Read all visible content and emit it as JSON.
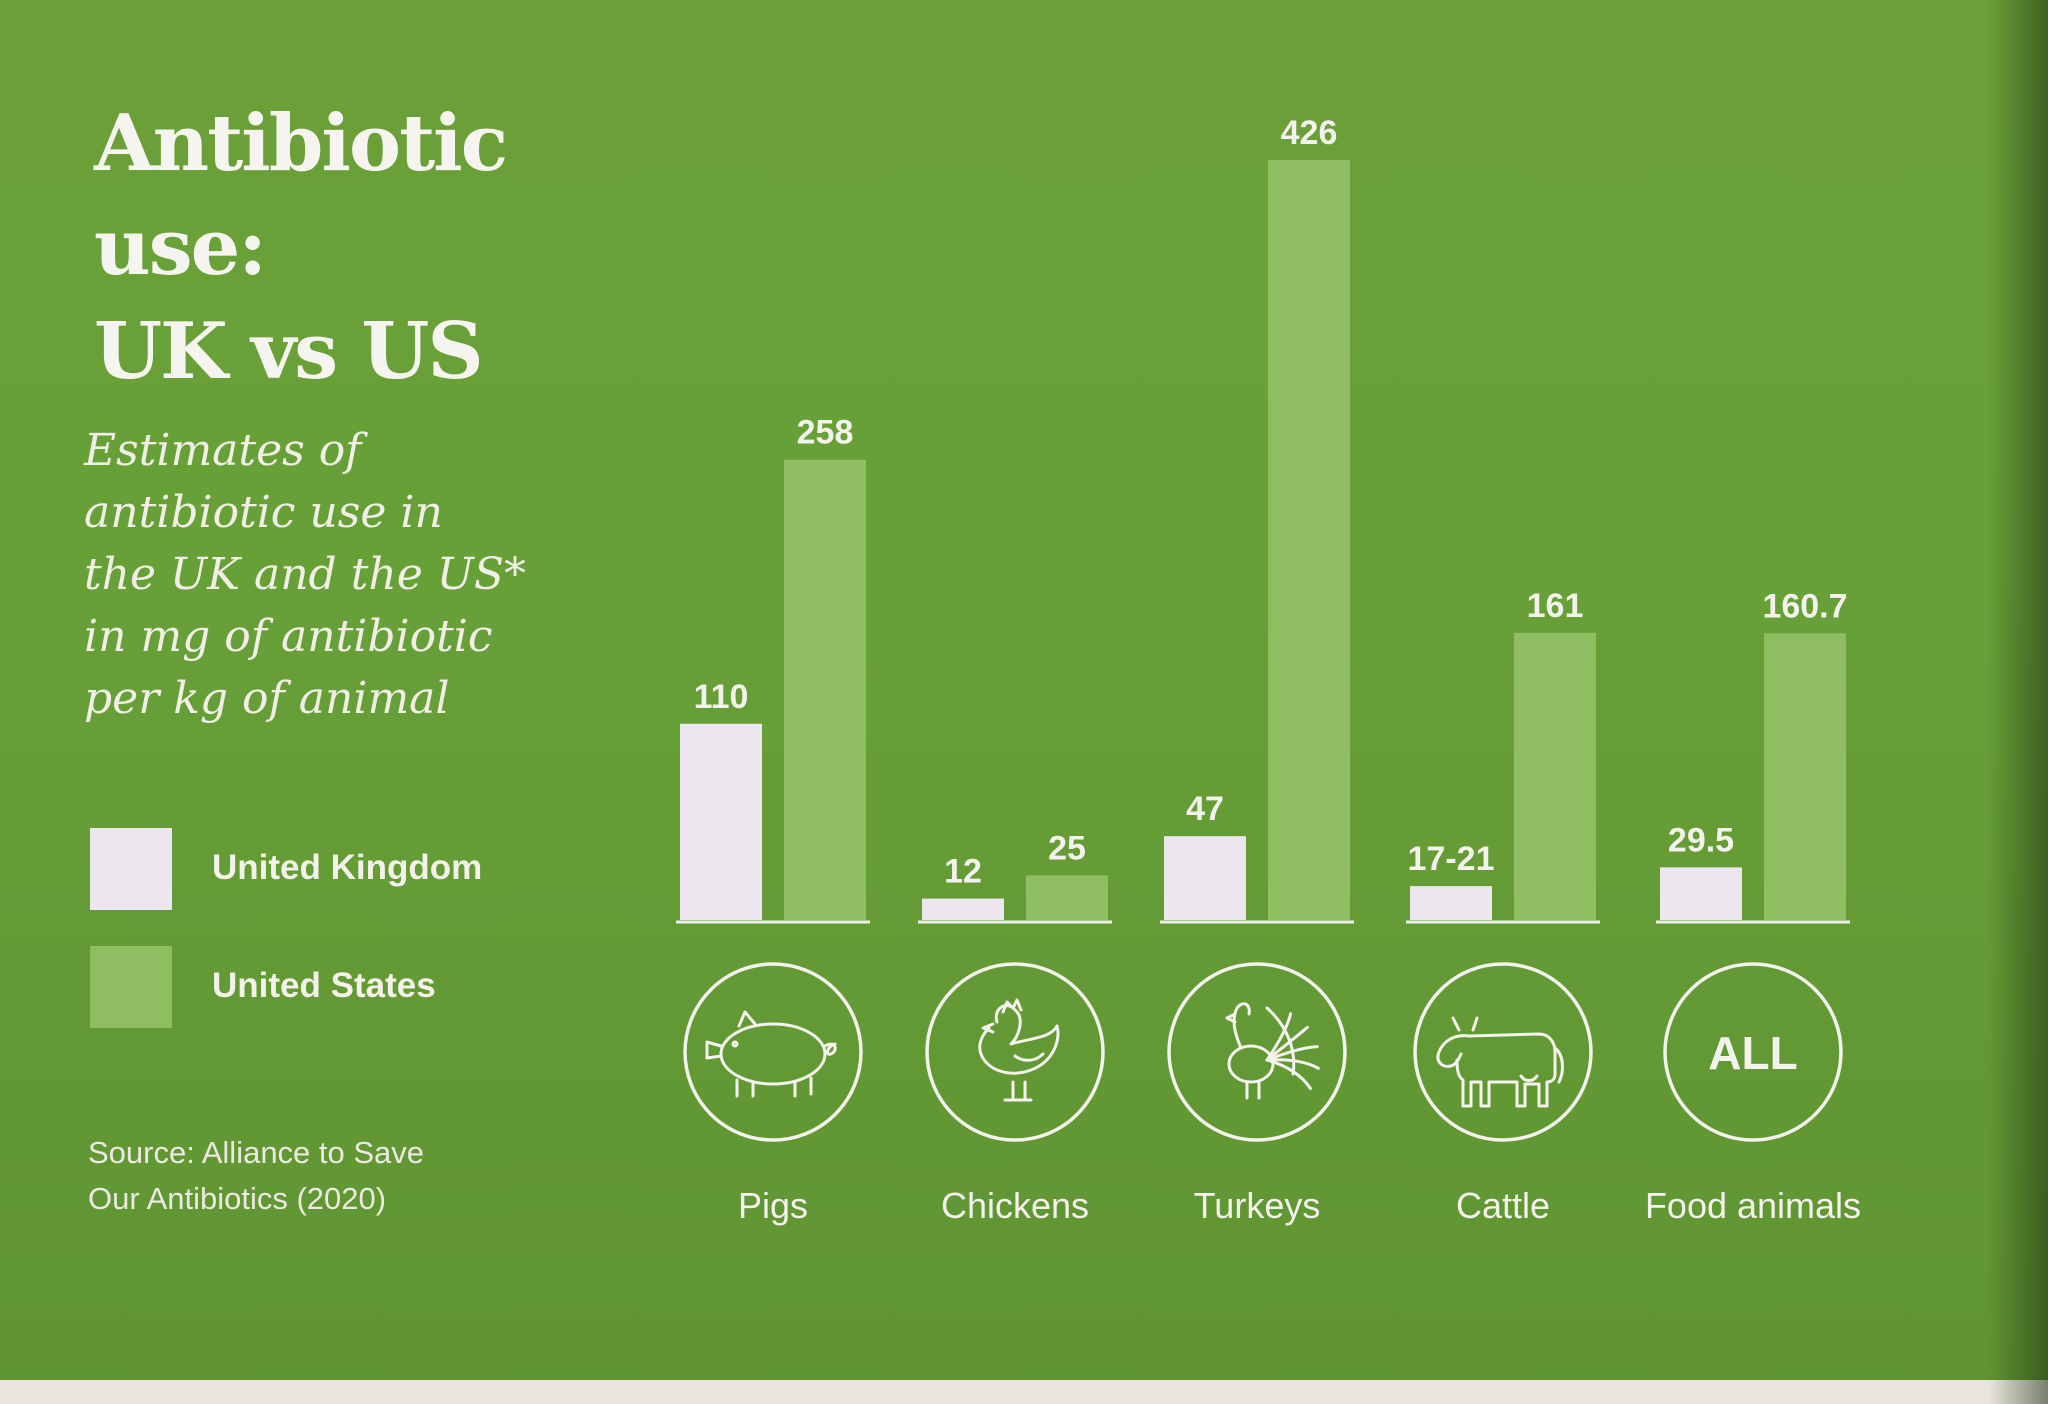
{
  "title_lines": [
    "Antibiotic",
    "use:",
    "UK vs US"
  ],
  "subtitle_lines": [
    "Estimates of",
    "antibiotic use in",
    "the UK and the US*",
    "in mg of antibiotic",
    "per kg of animal"
  ],
  "legend": [
    {
      "label": "United Kingdom",
      "color": "#ece7ee"
    },
    {
      "label": "United States",
      "color": "#8fbd62"
    }
  ],
  "source_lines": [
    "Source: Alliance to Save",
    "Our Antibiotics (2020)"
  ],
  "colors": {
    "background": "#68a038",
    "uk": "#ece7ee",
    "us": "#8fbd62",
    "text": "#f4f2ec"
  },
  "chart_data": {
    "type": "bar",
    "title": "Antibiotic use: UK vs US",
    "ylabel": "mg of antibiotic per kg of animal",
    "ylim": [
      0,
      426
    ],
    "categories": [
      "Pigs",
      "Chickens",
      "Turkeys",
      "Cattle",
      "Food animals"
    ],
    "category_icons": [
      "pig-icon",
      "chicken-icon",
      "turkey-icon",
      "cow-icon",
      "all-icon"
    ],
    "all_icon_text": "ALL",
    "series": [
      {
        "name": "United Kingdom",
        "values": [
          110,
          12,
          47,
          19,
          29.5
        ],
        "labels": [
          "110",
          "12",
          "47",
          "17-21",
          "29.5"
        ]
      },
      {
        "name": "United States",
        "values": [
          258,
          25,
          426,
          161,
          160.7
        ],
        "labels": [
          "258",
          "25",
          "426",
          "161",
          "160.7"
        ]
      }
    ]
  }
}
